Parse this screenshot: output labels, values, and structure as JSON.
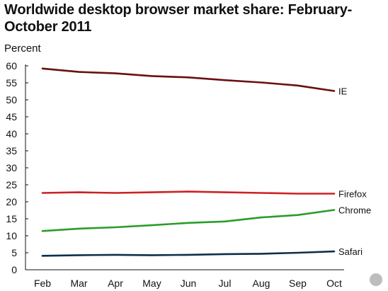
{
  "chart_data": {
    "type": "line",
    "title": "Worldwide desktop browser market share: February-October 2011",
    "ylabel": "Percent",
    "xlabel": "",
    "categories": [
      "Feb",
      "Mar",
      "Apr",
      "May",
      "Jun",
      "Jul",
      "Aug",
      "Sep",
      "Oct"
    ],
    "ylim": [
      0,
      60
    ],
    "yticks": [
      0,
      5,
      10,
      15,
      20,
      25,
      30,
      35,
      40,
      45,
      50,
      55,
      60
    ],
    "grid": false,
    "series": [
      {
        "name": "IE",
        "color": "#6b0f0f",
        "values": [
          59.2,
          58.2,
          57.8,
          57.0,
          56.6,
          55.8,
          55.1,
          54.2,
          52.6
        ]
      },
      {
        "name": "Firefox",
        "color": "#cc2222",
        "values": [
          22.6,
          22.8,
          22.6,
          22.8,
          23.0,
          22.8,
          22.6,
          22.4,
          22.4
        ]
      },
      {
        "name": "Chrome",
        "color": "#2a9d2a",
        "values": [
          11.4,
          12.1,
          12.5,
          13.1,
          13.8,
          14.2,
          15.4,
          16.1,
          17.6
        ]
      },
      {
        "name": "Safari",
        "color": "#0e2f4a",
        "values": [
          4.1,
          4.3,
          4.4,
          4.3,
          4.4,
          4.6,
          4.7,
          5.0,
          5.4
        ]
      }
    ]
  }
}
